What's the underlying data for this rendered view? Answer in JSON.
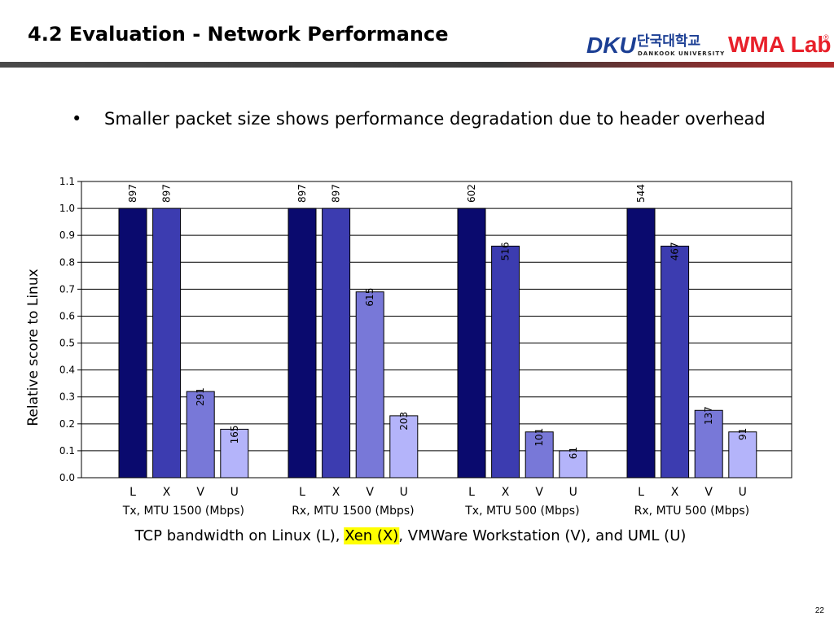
{
  "slide": {
    "title": "4.2 Evaluation - Network Performance",
    "bullet_symbol": "•",
    "bullet": "Smaller packet size shows performance degradation due to header overhead",
    "page_number": "22"
  },
  "logos": {
    "university_mark": "DKU",
    "university_korean": "단국대학교",
    "university_english": "DANKOOK UNIVERSITY",
    "lab_name": "WMA Lab",
    "registered_mark": "®"
  },
  "caption": {
    "before": "TCP bandwidth on Linux (L), ",
    "highlight": "Xen (X)",
    "after": ", VMWare Workstation (V), and UML (U)"
  },
  "colors": {
    "L": "#0a0a6e",
    "X": "#3c3cb0",
    "V": "#7878d8",
    "U": "#b4b4fa",
    "highlight": "#ffff00",
    "dku_blue": "#1c3f94",
    "wma_red": "#e8202a"
  },
  "chart_data": {
    "type": "bar",
    "ylabel": "Relative score to Linux",
    "ylim": [
      0,
      1.1
    ],
    "yticks": [
      "0.0",
      "0.1",
      "0.2",
      "0.3",
      "0.4",
      "0.5",
      "0.6",
      "0.7",
      "0.8",
      "0.9",
      "1.0",
      "1.1"
    ],
    "grid": true,
    "bar_letters": [
      "L",
      "X",
      "V",
      "U"
    ],
    "groups": [
      {
        "name": "Tx, MTU 1500 (Mbps)",
        "values": [
          1.0,
          1.0,
          0.32,
          0.18
        ],
        "labels": [
          "897",
          "897",
          "291",
          "165"
        ]
      },
      {
        "name": "Rx, MTU 1500 (Mbps)",
        "values": [
          1.0,
          1.0,
          0.69,
          0.23
        ],
        "labels": [
          "897",
          "897",
          "615",
          "203"
        ]
      },
      {
        "name": "Tx, MTU 500 (Mbps)",
        "values": [
          1.0,
          0.86,
          0.17,
          0.1
        ],
        "labels": [
          "602",
          "516",
          "101",
          "61"
        ]
      },
      {
        "name": "Rx, MTU 500 (Mbps)",
        "values": [
          1.0,
          0.86,
          0.25,
          0.17
        ],
        "labels": [
          "544",
          "467",
          "137",
          "91"
        ]
      }
    ]
  }
}
